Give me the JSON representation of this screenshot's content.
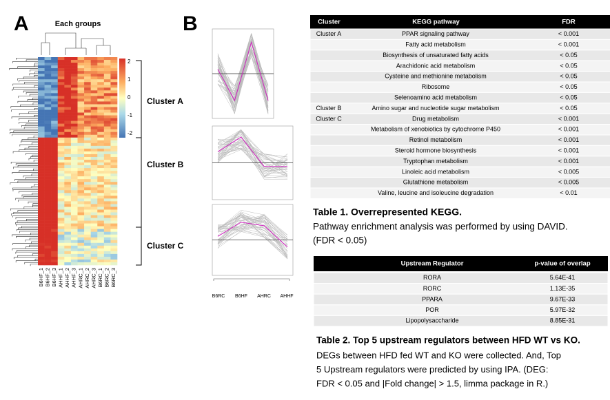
{
  "panel_a": {
    "label": "A",
    "dendrogram_title": "Each groups",
    "colorbar_ticks": [
      2,
      1,
      0,
      -1,
      -2
    ],
    "clusters": [
      "Cluster A",
      "Cluster B",
      "Cluster C"
    ],
    "columns": [
      "B6HF_1",
      "B6HF_2",
      "B6HF_3",
      "AHHF_1",
      "AHHF_2",
      "AHHF_3",
      "AHRC_1",
      "AHRC_2",
      "AHRC_3",
      "B6RC_1",
      "B6RC_2",
      "B6RC_3"
    ]
  },
  "panel_b": {
    "label": "B",
    "x_labels": [
      "B6RC",
      "B6HF",
      "AHRC",
      "AHHF"
    ]
  },
  "table1": {
    "headers": [
      "Cluster",
      "KEGG pathway",
      "FDR"
    ],
    "rows": [
      {
        "cluster": "Cluster A",
        "pathway": "PPAR signaling pathway",
        "fdr": "< 0.001"
      },
      {
        "pathway": "Fatty acid metabolism",
        "fdr": "< 0.001"
      },
      {
        "pathway": "Biosynthesis of unsaturated fatty acids",
        "fdr": "< 0.05"
      },
      {
        "pathway": "Arachidonic acid metabolism",
        "fdr": "< 0.05"
      },
      {
        "pathway": "Cysteine and methionine metabolism",
        "fdr": "< 0.05"
      },
      {
        "pathway": "Ribosome",
        "fdr": "< 0.05"
      },
      {
        "pathway": "Selenoamino acid metabolism",
        "fdr": "< 0.05"
      },
      {
        "cluster": "Cluster B",
        "pathway": "Amino sugar and nucleotide sugar metabolism",
        "fdr": "< 0.05"
      },
      {
        "cluster": "Cluster C",
        "pathway": "Drug metabolism",
        "fdr": "< 0.001"
      },
      {
        "pathway": "Metabolism of xenobiotics by cytochrome P450",
        "fdr": "< 0.001"
      },
      {
        "pathway": "Retinol metabolism",
        "fdr": "< 0.001"
      },
      {
        "pathway": "Steroid hormone biosynthesis",
        "fdr": "< 0.001"
      },
      {
        "pathway": "Tryptophan metabolism",
        "fdr": "< 0.001"
      },
      {
        "pathway": "Linoleic acid metabolism",
        "fdr": "< 0.005"
      },
      {
        "pathway": "Glutathione metabolism",
        "fdr": "< 0.005"
      },
      {
        "pathway": "Valine, leucine and isoleucine degradation",
        "fdr": "< 0.01"
      }
    ]
  },
  "caption1": {
    "title": "Table 1. Overrepresented KEGG.",
    "lines": [
      "Pathway enrichment analysis was performed by using DAVID.",
      "(FDR < 0.05)"
    ]
  },
  "table2": {
    "headers": [
      "Upstream Regulator",
      "p-value of overlap"
    ],
    "rows": [
      [
        "RORA",
        "5.64E-41"
      ],
      [
        "RORC",
        "1.13E-35"
      ],
      [
        "PPARA",
        "9.67E-33"
      ],
      [
        "POR",
        "5.97E-32"
      ],
      [
        "Lipopolysaccharide",
        "8.85E-31"
      ]
    ]
  },
  "caption2": {
    "title": "Table 2. Top 5 upstream regulators between HFD WT vs KO.",
    "lines": [
      "DEGs between HFD fed WT and KO were collected. And, Top",
      "5 Upstream regulators were predicted by using IPA. (DEG:",
      "FDR < 0.05 and |Fold change| > 1.5, limma package in R.)"
    ]
  }
}
